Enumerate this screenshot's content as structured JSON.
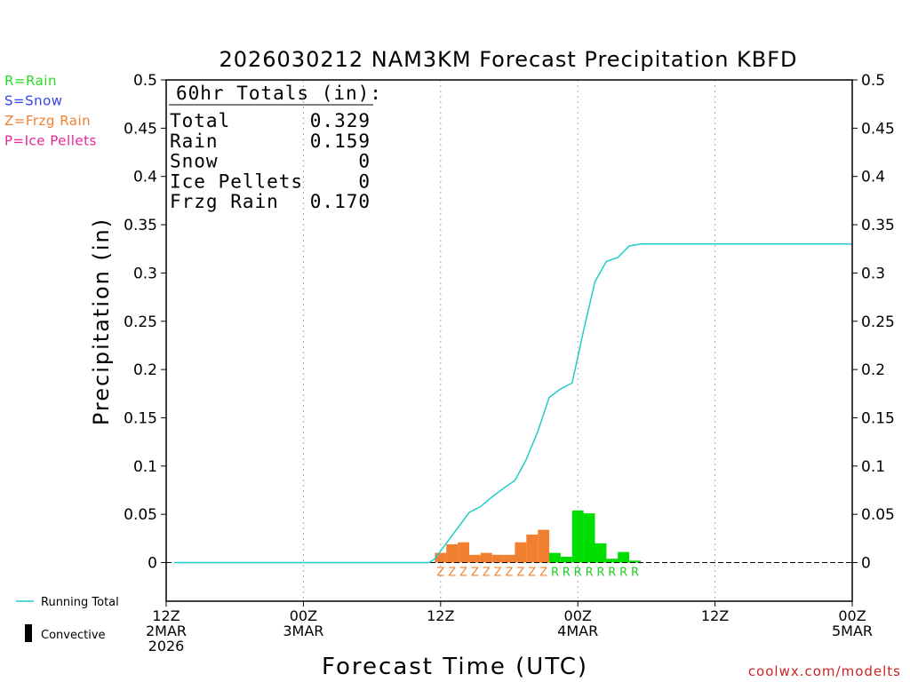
{
  "chart_data": {
    "type": "bar",
    "title": "2026030212 NAM3KM Forecast Precipitation KBFD",
    "xlabel": "Forecast Time (UTC)",
    "ylabel": "Precipitation (in)",
    "ylim": [
      -0.04,
      0.5
    ],
    "xlim_hours": [
      0,
      60
    ],
    "yticks": [
      "0",
      "0.05",
      "0.1",
      "0.15",
      "0.2",
      "0.25",
      "0.3",
      "0.35",
      "0.4",
      "0.45",
      "0.5"
    ],
    "x_ticks": [
      {
        "hour": 0,
        "lines": [
          "12Z",
          "2MAR",
          "2026"
        ]
      },
      {
        "hour": 12,
        "lines": [
          "00Z",
          "3MAR"
        ]
      },
      {
        "hour": 24,
        "lines": [
          "12Z"
        ]
      },
      {
        "hour": 36,
        "lines": [
          "00Z",
          "4MAR"
        ]
      },
      {
        "hour": 48,
        "lines": [
          "12Z"
        ]
      },
      {
        "hour": 60,
        "lines": [
          "00Z",
          "5MAR"
        ]
      }
    ],
    "type_legend": [
      {
        "label": "R=Rain",
        "color": "#22dd22"
      },
      {
        "label": "S=Snow",
        "color": "#3344ee"
      },
      {
        "label": "Z=Frzg Rain",
        "color": "#f08030"
      },
      {
        "label": "P=Ice Pellets",
        "color": "#ee2299"
      }
    ],
    "totals_box": {
      "header": "60hr Totals (in):",
      "rows": [
        {
          "label": "Total",
          "value": "0.329"
        },
        {
          "label": "Rain",
          "value": "0.159"
        },
        {
          "label": "Snow",
          "value": "0"
        },
        {
          "label": "Ice Pellets",
          "value": "0"
        },
        {
          "label": "Frzg Rain",
          "value": "0.170"
        }
      ]
    },
    "hourly_bars": [
      {
        "hour": 24,
        "value": 0.01,
        "type": "Z"
      },
      {
        "hour": 25,
        "value": 0.019,
        "type": "Z"
      },
      {
        "hour": 26,
        "value": 0.021,
        "type": "Z"
      },
      {
        "hour": 27,
        "value": 0.008,
        "type": "Z"
      },
      {
        "hour": 28,
        "value": 0.01,
        "type": "Z"
      },
      {
        "hour": 29,
        "value": 0.008,
        "type": "Z"
      },
      {
        "hour": 30,
        "value": 0.008,
        "type": "Z"
      },
      {
        "hour": 31,
        "value": 0.021,
        "type": "Z"
      },
      {
        "hour": 32,
        "value": 0.029,
        "type": "Z"
      },
      {
        "hour": 33,
        "value": 0.034,
        "type": "Z"
      },
      {
        "hour": 34,
        "value": 0.01,
        "type": "R"
      },
      {
        "hour": 35,
        "value": 0.006,
        "type": "R"
      },
      {
        "hour": 36,
        "value": 0.054,
        "type": "R"
      },
      {
        "hour": 37,
        "value": 0.051,
        "type": "R"
      },
      {
        "hour": 38,
        "value": 0.02,
        "type": "R"
      },
      {
        "hour": 39,
        "value": 0.004,
        "type": "R"
      },
      {
        "hour": 40,
        "value": 0.011,
        "type": "R"
      },
      {
        "hour": 41,
        "value": 0.002,
        "type": "R"
      }
    ],
    "running_total": {
      "x": [
        0.7,
        23,
        23.5,
        24.5,
        25.5,
        26.5,
        27.5,
        28.5,
        29.5,
        30.5,
        31.5,
        32.5,
        33.5,
        34.5,
        35.5,
        36.5,
        37.5,
        38.5,
        39.5,
        40.5,
        41.5,
        60
      ],
      "y": [
        0,
        0,
        0.004,
        0.02,
        0.036,
        0.052,
        0.058,
        0.068,
        0.077,
        0.085,
        0.107,
        0.136,
        0.171,
        0.18,
        0.186,
        0.24,
        0.291,
        0.312,
        0.316,
        0.328,
        0.33,
        0.33
      ]
    },
    "series_legend": [
      {
        "label": "Running Total",
        "color": "#22cccc"
      },
      {
        "label": "Convective",
        "color": "#000000"
      }
    ],
    "source_credit": "coolwx.com/modelts"
  }
}
